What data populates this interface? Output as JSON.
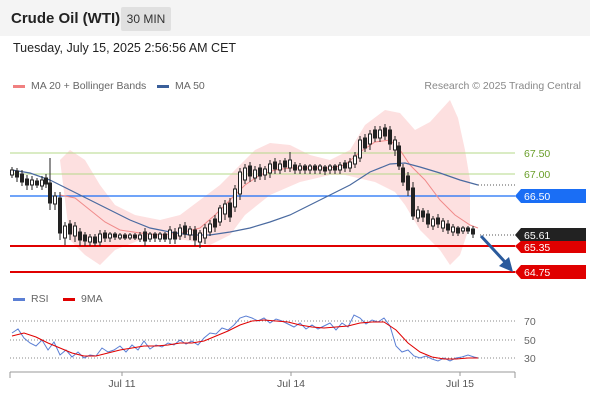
{
  "header": {
    "title": "Crude Oil (WTI)",
    "timeframe": "30 MIN",
    "datetime": "Tuesday, July 15, 2025 2:56:56 AM CET"
  },
  "price_panel": {
    "legend": [
      {
        "label": "MA 20 + Bollinger Bands",
        "color": "#f08080"
      },
      {
        "label": "MA 50",
        "color": "#3a5f9a"
      }
    ],
    "credit": "Research © 2025 Trading Central",
    "levels": [
      {
        "value": "67.50",
        "color": "#6a9f2a",
        "kind": "resistance"
      },
      {
        "value": "67.00",
        "color": "#6a9f2a",
        "kind": "resistance"
      },
      {
        "value": "66.50",
        "color": "#1a6ef5",
        "kind": "pivot"
      },
      {
        "value": "65.61",
        "color": "#222222",
        "kind": "last"
      },
      {
        "value": "65.35",
        "color": "#e00000",
        "kind": "support"
      },
      {
        "value": "64.75",
        "color": "#e00000",
        "kind": "target"
      }
    ]
  },
  "rsi_panel": {
    "legend": [
      {
        "label": "RSI",
        "color": "#5b7fd4"
      },
      {
        "label": "9MA",
        "color": "#e00000"
      }
    ],
    "ticks": [
      "70",
      "50",
      "30"
    ]
  },
  "x_axis": {
    "ticks": [
      "Jul 11",
      "Jul 14",
      "Jul 15"
    ]
  }
}
